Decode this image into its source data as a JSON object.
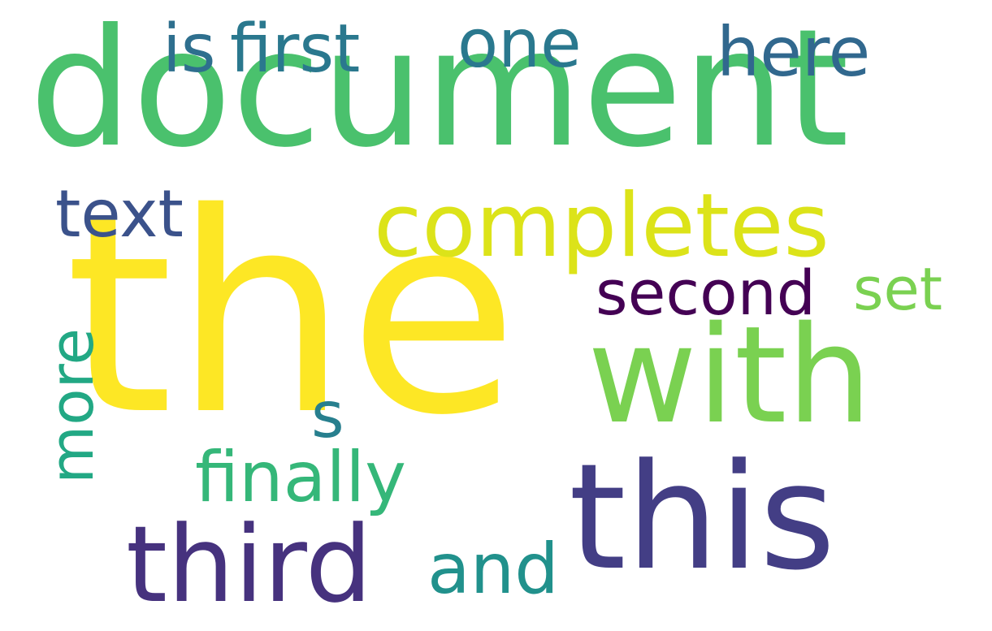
{
  "words": {
    "document": {
      "text": "document",
      "color": "#4AC16D"
    },
    "the": {
      "text": "the",
      "color": "#FDE725"
    },
    "with": {
      "text": "with",
      "color": "#7AD151"
    },
    "this": {
      "text": "this",
      "color": "#433E85"
    },
    "third": {
      "text": "third",
      "color": "#46327E"
    },
    "completes": {
      "text": "completes",
      "color": "#DCE319"
    },
    "second": {
      "text": "second",
      "color": "#440154"
    },
    "set": {
      "text": "set",
      "color": "#7AD151"
    },
    "text": {
      "text": "text",
      "color": "#3B528B"
    },
    "is": {
      "text": "is",
      "color": "#2E6F8E"
    },
    "first": {
      "text": "first",
      "color": "#2A788E"
    },
    "one": {
      "text": "one",
      "color": "#2A788E"
    },
    "here": {
      "text": "here",
      "color": "#31688E"
    },
    "more": {
      "text": "more",
      "color": "#22A884"
    },
    "s": {
      "text": "s",
      "color": "#277F8E"
    },
    "finally": {
      "text": "finally",
      "color": "#35B779"
    },
    "and": {
      "text": "and",
      "color": "#21918C"
    }
  }
}
